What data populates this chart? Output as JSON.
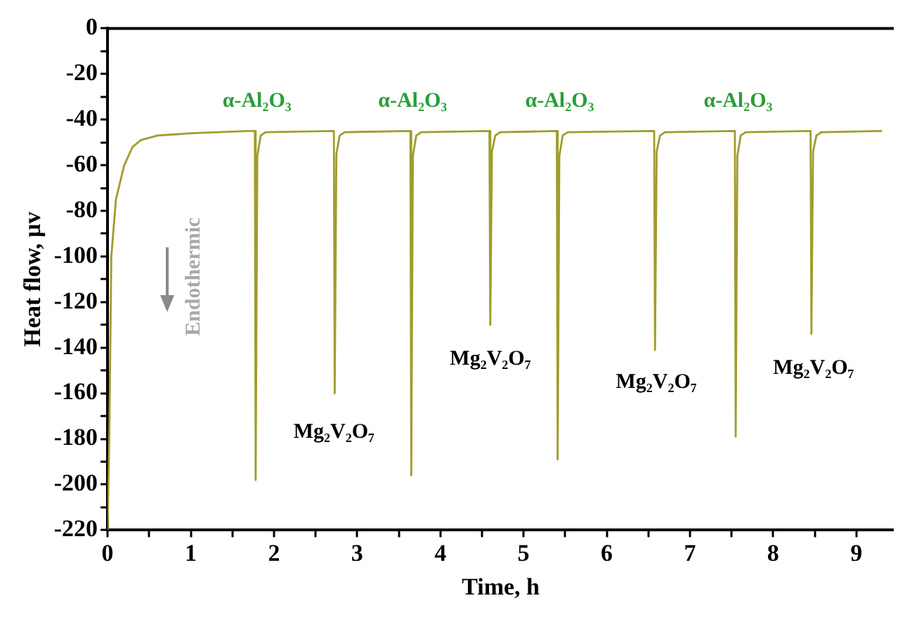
{
  "chart_data": {
    "type": "line",
    "xlabel": "Time, h",
    "ylabel": "Heat flow, μv",
    "x": [
      0,
      0.02,
      0.045,
      0.1,
      0.2,
      0.3,
      0.4,
      0.6,
      1.0,
      1.7,
      1.77,
      1.78,
      1.8,
      1.84,
      1.9,
      2.72,
      2.73,
      2.75,
      2.79,
      2.85,
      3.64,
      3.65,
      3.67,
      3.71,
      3.77,
      4.59,
      4.6,
      4.62,
      4.66,
      4.72,
      5.4,
      5.41,
      5.43,
      5.47,
      5.53,
      6.57,
      6.58,
      6.6,
      6.64,
      6.7,
      7.54,
      7.55,
      7.57,
      7.61,
      7.67,
      8.45,
      8.46,
      8.48,
      8.52,
      8.58,
      9.31
    ],
    "series": [
      {
        "color": "#9f9d2c",
        "values": [
          -220,
          -180,
          -100,
          -75,
          -60,
          -52,
          -49,
          -47,
          -46,
          -45,
          -45,
          -198,
          -56,
          -47,
          -45.5,
          -45,
          -160,
          -55,
          -47,
          -45.5,
          -45,
          -196,
          -56,
          -47,
          -45.5,
          -45,
          -130,
          -54,
          -47,
          -45.5,
          -45,
          -189,
          -56,
          -47,
          -45.5,
          -45,
          -141,
          -54,
          -47,
          -45.5,
          -45,
          -179,
          -56,
          -47,
          -45.5,
          -45,
          -134,
          -54,
          -47,
          -45.5,
          -45
        ]
      }
    ],
    "xlim": [
      0,
      9.45
    ],
    "xticks": [
      0,
      {
        "value": 0.5,
        "label": null
      },
      1,
      {
        "value": 1.5,
        "label": null
      },
      2,
      {
        "value": 2.5,
        "label": null
      },
      3,
      {
        "value": 3.5,
        "label": null
      },
      4,
      {
        "value": 4.5,
        "label": null
      },
      5,
      {
        "value": 5.5,
        "label": null
      },
      6,
      {
        "value": 6.5,
        "label": null
      },
      7,
      {
        "value": 7.5,
        "label": null
      },
      8,
      {
        "value": 8.5,
        "label": null
      },
      9
    ],
    "ylim": [
      -220,
      0
    ],
    "yticks": [
      -220,
      {
        "value": -210,
        "label": null
      },
      -200,
      {
        "value": -190,
        "label": null
      },
      -180,
      {
        "value": -170,
        "label": null
      },
      -160,
      {
        "value": -150,
        "label": null
      },
      -140,
      {
        "value": -130,
        "label": null
      },
      -120,
      {
        "value": -110,
        "label": null
      },
      -100,
      {
        "value": -90,
        "label": null
      },
      -80,
      {
        "value": -70,
        "label": null
      },
      -60,
      {
        "value": -50,
        "label": null
      },
      -40,
      {
        "value": -30,
        "label": null
      },
      -20,
      {
        "value": -10,
        "label": null
      },
      0
    ],
    "annotations": [
      "α-Al₂O₃",
      "α-Al₂O₃",
      "α-Al₂O₃",
      "α-Al₂O₃",
      "Mg₂V₂O₇",
      "Mg₂V₂O₇",
      "Mg₂V₂O₇",
      "Mg₂V₂O₇",
      "Endothermic"
    ],
    "grid": false,
    "legend": false,
    "marker": "none",
    "line_style": "solid"
  }
}
